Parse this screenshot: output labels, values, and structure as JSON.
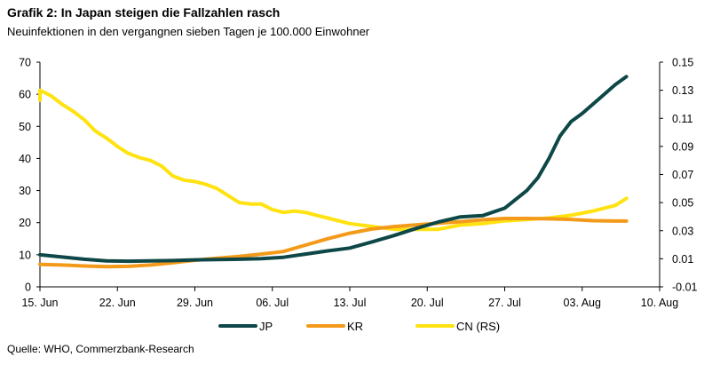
{
  "header": {
    "title": "Grafik 2: In Japan steigen die Fallzahlen rasch",
    "subtitle": "Neuinfektionen in den vergangnen sieben Tagen je 100.000 Einwohner"
  },
  "footer": {
    "source": "Quelle: WHO, Commerzbank-Research"
  },
  "chart_data": {
    "type": "line",
    "title": "Grafik 2: In Japan steigen die Fallzahlen rasch",
    "subtitle": "Neuinfektionen in den vergangnen sieben Tagen je 100.000 Einwohner",
    "x_start": "2020-06-15",
    "x_tick_labels": [
      "15. Jun",
      "22. Jun",
      "29. Jun",
      "06. Jul",
      "13. Jul",
      "20. Jul",
      "27. Jul",
      "03. Aug",
      "10. Aug"
    ],
    "y_left": {
      "ylim": [
        0,
        70
      ],
      "ticks": [
        "0",
        "10",
        "20",
        "30",
        "40",
        "50",
        "60",
        "70"
      ]
    },
    "y_right": {
      "ylim": [
        -0.01,
        0.15
      ],
      "ticks": [
        "-0.01",
        "0.01",
        "0.03",
        "0.05",
        "0.07",
        "0.09",
        "0.11",
        "0.13",
        "0.15"
      ]
    },
    "grid": false,
    "legend_position": "bottom",
    "series": [
      {
        "name": "JP",
        "axis": "left",
        "color": "#0e4747",
        "x": [
          "2020-06-15",
          "2020-06-17",
          "2020-06-19",
          "2020-06-21",
          "2020-06-23",
          "2020-06-25",
          "2020-06-27",
          "2020-06-29",
          "2020-07-01",
          "2020-07-03",
          "2020-07-05",
          "2020-07-07",
          "2020-07-09",
          "2020-07-11",
          "2020-07-13",
          "2020-07-15",
          "2020-07-17",
          "2020-07-19",
          "2020-07-21",
          "2020-07-23",
          "2020-07-25",
          "2020-07-27",
          "2020-07-29",
          "2020-07-30",
          "2020-07-31",
          "2020-08-01",
          "2020-08-02",
          "2020-08-03",
          "2020-08-04",
          "2020-08-05",
          "2020-08-06",
          "2020-08-07"
        ],
        "values": [
          10,
          9.3,
          8.6,
          8.1,
          8.0,
          8.1,
          8.2,
          8.4,
          8.5,
          8.6,
          8.8,
          9.2,
          10.2,
          11.2,
          12.1,
          14.0,
          16.0,
          18.2,
          20.2,
          21.8,
          22.2,
          24.5,
          30.0,
          34.0,
          40.0,
          47.0,
          51.5,
          54.0,
          57.0,
          60.0,
          63.0,
          65.5
        ]
      },
      {
        "name": "KR",
        "axis": "left",
        "color": "#f39a1b",
        "x": [
          "2020-06-15",
          "2020-06-17",
          "2020-06-19",
          "2020-06-21",
          "2020-06-23",
          "2020-06-25",
          "2020-06-27",
          "2020-06-29",
          "2020-07-01",
          "2020-07-03",
          "2020-07-05",
          "2020-07-07",
          "2020-07-09",
          "2020-07-11",
          "2020-07-13",
          "2020-07-15",
          "2020-07-17",
          "2020-07-19",
          "2020-07-21",
          "2020-07-23",
          "2020-07-25",
          "2020-07-27",
          "2020-07-29",
          "2020-07-31",
          "2020-08-02",
          "2020-08-04",
          "2020-08-06",
          "2020-08-07"
        ],
        "values": [
          7.0,
          6.8,
          6.5,
          6.3,
          6.4,
          6.8,
          7.5,
          8.3,
          8.9,
          9.5,
          10.2,
          11.0,
          13.0,
          15.0,
          16.7,
          18.0,
          18.8,
          19.3,
          19.8,
          20.3,
          20.9,
          21.3,
          21.3,
          21.2,
          21.0,
          20.6,
          20.5,
          20.5
        ]
      },
      {
        "name": "CN (RS)",
        "axis": "right",
        "color": "#ffe20f",
        "x": [
          "2020-06-15",
          "2020-06-15",
          "2020-06-16",
          "2020-06-17",
          "2020-06-18",
          "2020-06-19",
          "2020-06-20",
          "2020-06-21",
          "2020-06-22",
          "2020-06-23",
          "2020-06-24",
          "2020-06-25",
          "2020-06-26",
          "2020-06-27",
          "2020-06-28",
          "2020-06-29",
          "2020-06-30",
          "2020-07-01",
          "2020-07-02",
          "2020-07-03",
          "2020-07-04",
          "2020-07-05",
          "2020-07-06",
          "2020-07-07",
          "2020-07-08",
          "2020-07-09",
          "2020-07-10",
          "2020-07-11",
          "2020-07-13",
          "2020-07-15",
          "2020-07-17",
          "2020-07-19",
          "2020-07-21",
          "2020-07-23",
          "2020-07-25",
          "2020-07-27",
          "2020-07-29",
          "2020-07-31",
          "2020-08-02",
          "2020-08-04",
          "2020-08-06",
          "2020-08-07"
        ],
        "values": [
          0.123,
          0.13,
          0.126,
          0.12,
          0.115,
          0.109,
          0.101,
          0.096,
          0.09,
          0.085,
          0.082,
          0.08,
          0.076,
          0.069,
          0.066,
          0.065,
          0.063,
          0.06,
          0.055,
          0.05,
          0.049,
          0.049,
          0.045,
          0.043,
          0.044,
          0.043,
          0.041,
          0.039,
          0.035,
          0.033,
          0.031,
          0.031,
          0.031,
          0.034,
          0.035,
          0.037,
          0.038,
          0.039,
          0.041,
          0.044,
          0.048,
          0.053
        ]
      }
    ]
  }
}
